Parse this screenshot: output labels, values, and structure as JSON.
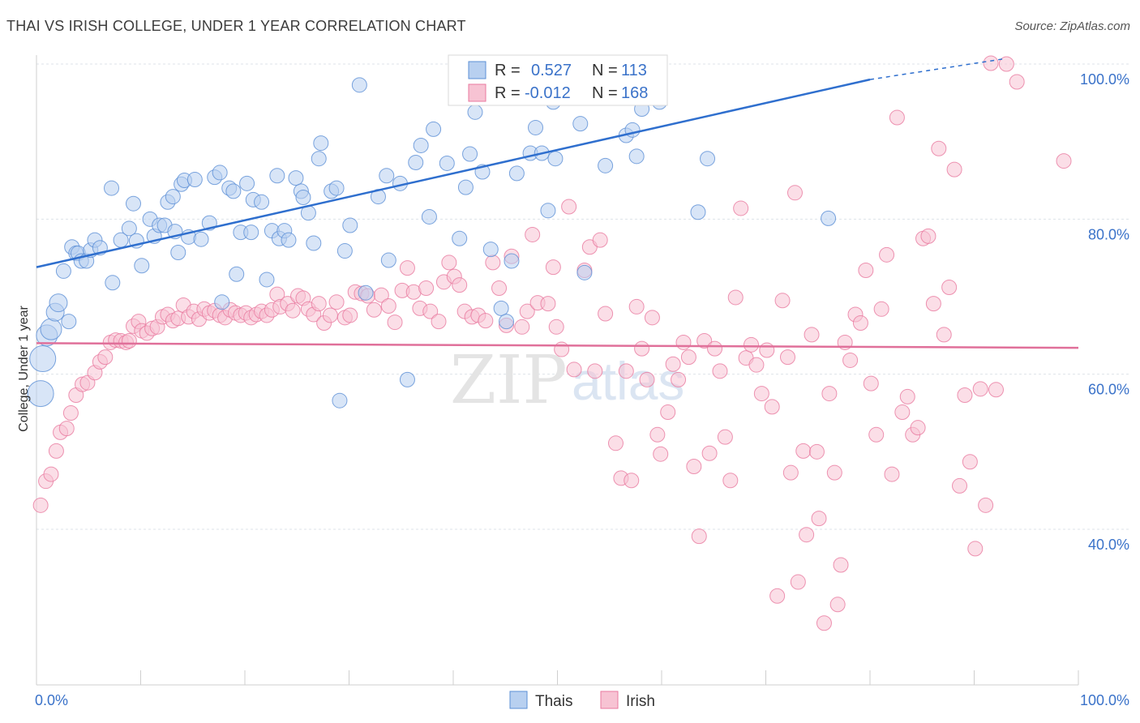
{
  "title": "THAI VS IRISH COLLEGE, UNDER 1 YEAR CORRELATION CHART",
  "source": "Source: ZipAtlas.com",
  "watermark": {
    "zip": "ZIP",
    "atlas": "atlas"
  },
  "colors": {
    "thais": "#5b8fd6",
    "thais_fill": "#b8d0f0",
    "irish": "#e8799f",
    "irish_fill": "#f7c3d3",
    "trend_thais": "#2f6fce",
    "trend_irish": "#e0709a",
    "grid": "#dde3ea",
    "tick_text": "#3a72c9"
  },
  "legend": {
    "rows": [
      {
        "r_label": "R =",
        "r_value": "0.527",
        "n_label": "N =",
        "n_value": "113"
      },
      {
        "r_label": "R =",
        "r_value": "-0.012",
        "n_label": "N =",
        "n_value": "168"
      }
    ]
  },
  "chart_data": {
    "type": "scatter",
    "title": "THAI VS IRISH COLLEGE, UNDER 1 YEAR CORRELATION CHART",
    "xlabel": "",
    "ylabel": "College, Under 1 year",
    "xlim": [
      0,
      100
    ],
    "ylim": [
      20,
      102
    ],
    "x_tick_labels": [
      "0.0%",
      "100.0%"
    ],
    "y_ticks": [
      40,
      60,
      80,
      100
    ],
    "y_tick_labels": [
      "40.0%",
      "60.0%",
      "80.0%",
      "100.0%"
    ],
    "legend_position": "top-center",
    "grid": true,
    "series": [
      {
        "name": "Thais",
        "trend": {
          "x0": 0,
          "y0": 73.8,
          "x1": 80,
          "y1": 98,
          "dashed_to_x": 93,
          "dashed_to_y": 100.7
        },
        "points": [
          [
            0.4,
            57.5
          ],
          [
            0.6,
            62
          ],
          [
            1,
            65
          ],
          [
            1.4,
            65.8
          ],
          [
            1.8,
            68
          ],
          [
            2.1,
            69.2
          ],
          [
            2.6,
            73.3
          ],
          [
            3.1,
            66.8
          ],
          [
            3.4,
            76.4
          ],
          [
            3.8,
            75.6
          ],
          [
            4,
            75.6
          ],
          [
            4.3,
            74.6
          ],
          [
            4.8,
            74.6
          ],
          [
            5.2,
            76
          ],
          [
            5.6,
            77.3
          ],
          [
            6.1,
            76.3
          ],
          [
            7.2,
            84
          ],
          [
            7.3,
            71.8
          ],
          [
            8.1,
            77.3
          ],
          [
            8.9,
            78.8
          ],
          [
            9.3,
            82
          ],
          [
            9.6,
            77.2
          ],
          [
            10.1,
            74
          ],
          [
            10.9,
            80
          ],
          [
            11.3,
            77.8
          ],
          [
            11.8,
            79.2
          ],
          [
            12.3,
            79.2
          ],
          [
            12.6,
            82.2
          ],
          [
            13.1,
            82.9
          ],
          [
            13.9,
            84.5
          ],
          [
            13.6,
            75.7
          ],
          [
            13.3,
            78.4
          ],
          [
            14.2,
            85
          ],
          [
            14.6,
            77.7
          ],
          [
            15.2,
            85.1
          ],
          [
            15.8,
            77.4
          ],
          [
            16.6,
            79.5
          ],
          [
            17.1,
            85.4
          ],
          [
            17.6,
            86
          ],
          [
            17.8,
            69.3
          ],
          [
            18.5,
            84
          ],
          [
            18.9,
            83.6
          ],
          [
            19.2,
            72.9
          ],
          [
            19.6,
            78.3
          ],
          [
            20.2,
            84.6
          ],
          [
            20.6,
            78.3
          ],
          [
            20.8,
            82.5
          ],
          [
            21.6,
            82.2
          ],
          [
            22.1,
            72.2
          ],
          [
            22.6,
            78.5
          ],
          [
            23.1,
            85.6
          ],
          [
            23.3,
            77.5
          ],
          [
            23.8,
            78.5
          ],
          [
            24.2,
            77.3
          ],
          [
            24.9,
            85.3
          ],
          [
            25.4,
            83.6
          ],
          [
            25.6,
            82.8
          ],
          [
            26.1,
            80.8
          ],
          [
            26.6,
            76.9
          ],
          [
            27.1,
            87.8
          ],
          [
            27.3,
            89.8
          ],
          [
            28.3,
            83.6
          ],
          [
            28.8,
            84
          ],
          [
            29.1,
            56.6
          ],
          [
            29.6,
            75.9
          ],
          [
            30.1,
            79.2
          ],
          [
            31,
            97.3
          ],
          [
            31.6,
            70.5
          ],
          [
            32.8,
            82.9
          ],
          [
            33.6,
            85.6
          ],
          [
            33.8,
            74.7
          ],
          [
            34.9,
            84.6
          ],
          [
            35.6,
            59.3
          ],
          [
            36.4,
            87.3
          ],
          [
            36.9,
            89.5
          ],
          [
            37.7,
            80.3
          ],
          [
            38.1,
            91.6
          ],
          [
            39.4,
            87.2
          ],
          [
            40.6,
            77.5
          ],
          [
            41.2,
            84.1
          ],
          [
            41.6,
            88.4
          ],
          [
            42.1,
            93.8
          ],
          [
            42.8,
            86.1
          ],
          [
            43.6,
            76.1
          ],
          [
            44.6,
            68.5
          ],
          [
            45.1,
            66.8
          ],
          [
            45.6,
            74.6
          ],
          [
            46.1,
            85.9
          ],
          [
            47.4,
            88.5
          ],
          [
            47.9,
            91.8
          ],
          [
            48.5,
            88.5
          ],
          [
            49.1,
            81.1
          ],
          [
            49.6,
            95.1
          ],
          [
            49.8,
            87.8
          ],
          [
            52.2,
            92.3
          ],
          [
            52.6,
            73.1
          ],
          [
            54.6,
            86.9
          ],
          [
            56.6,
            90.8
          ],
          [
            57.2,
            91.5
          ],
          [
            57.6,
            88.1
          ],
          [
            58.1,
            94.2
          ],
          [
            59.8,
            95.1
          ],
          [
            63.5,
            80.9
          ],
          [
            64.4,
            87.8
          ],
          [
            76,
            80.1
          ]
        ]
      },
      {
        "name": "Irish",
        "trend": {
          "x0": 0,
          "y0": 64,
          "x1": 100,
          "y1": 63.4
        },
        "points": [
          [
            0.4,
            43.1
          ],
          [
            0.9,
            46.2
          ],
          [
            1.4,
            47.1
          ],
          [
            1.9,
            50.1
          ],
          [
            2.3,
            52.5
          ],
          [
            2.9,
            53
          ],
          [
            3.3,
            55
          ],
          [
            3.8,
            57.3
          ],
          [
            4.4,
            58.7
          ],
          [
            4.9,
            58.9
          ],
          [
            5.6,
            60.2
          ],
          [
            6.1,
            61.6
          ],
          [
            6.6,
            62.2
          ],
          [
            7.1,
            64.1
          ],
          [
            7.6,
            64.4
          ],
          [
            8.1,
            64.3
          ],
          [
            8.6,
            64.1
          ],
          [
            8.9,
            64.3
          ],
          [
            9.3,
            66.2
          ],
          [
            9.8,
            66.8
          ],
          [
            10.1,
            65.6
          ],
          [
            10.6,
            65.3
          ],
          [
            11.1,
            65.9
          ],
          [
            11.6,
            66.1
          ],
          [
            12.1,
            67.4
          ],
          [
            12.6,
            67.7
          ],
          [
            13.1,
            66.9
          ],
          [
            13.6,
            67.2
          ],
          [
            14.1,
            68.9
          ],
          [
            14.6,
            67.4
          ],
          [
            15.1,
            68.1
          ],
          [
            15.6,
            67.1
          ],
          [
            16.1,
            68.4
          ],
          [
            16.6,
            67.9
          ],
          [
            17.1,
            68.2
          ],
          [
            17.6,
            67.6
          ],
          [
            18.1,
            67.3
          ],
          [
            18.6,
            68.3
          ],
          [
            19.1,
            67.9
          ],
          [
            19.6,
            67.6
          ],
          [
            20.1,
            67.9
          ],
          [
            20.6,
            67.3
          ],
          [
            21.1,
            67.7
          ],
          [
            21.6,
            68.1
          ],
          [
            22.1,
            67.6
          ],
          [
            22.6,
            68.3
          ],
          [
            23.1,
            70.3
          ],
          [
            23.4,
            68.7
          ],
          [
            24.1,
            69.1
          ],
          [
            24.6,
            68.2
          ],
          [
            25.1,
            70.1
          ],
          [
            25.6,
            69.8
          ],
          [
            26.1,
            68.4
          ],
          [
            26.6,
            67.7
          ],
          [
            27.1,
            69.1
          ],
          [
            27.6,
            66.6
          ],
          [
            28.2,
            67.6
          ],
          [
            28.8,
            69.3
          ],
          [
            29.6,
            67.3
          ],
          [
            30.1,
            67.6
          ],
          [
            30.6,
            70.6
          ],
          [
            31.2,
            70.4
          ],
          [
            31.8,
            70.1
          ],
          [
            32.4,
            68.3
          ],
          [
            33.1,
            70.2
          ],
          [
            33.8,
            68.8
          ],
          [
            34.4,
            66.7
          ],
          [
            35.1,
            70.8
          ],
          [
            35.6,
            73.7
          ],
          [
            36.2,
            70.6
          ],
          [
            36.8,
            68.5
          ],
          [
            37.4,
            71.1
          ],
          [
            37.8,
            68.1
          ],
          [
            38.6,
            66.8
          ],
          [
            39.1,
            71.9
          ],
          [
            39.6,
            74.4
          ],
          [
            40.1,
            72.6
          ],
          [
            40.6,
            71.5
          ],
          [
            41.1,
            68.1
          ],
          [
            41.8,
            67.4
          ],
          [
            42.4,
            67.6
          ],
          [
            43.1,
            66.9
          ],
          [
            43.8,
            74.4
          ],
          [
            44.4,
            71.1
          ],
          [
            45.1,
            66.3
          ],
          [
            45.6,
            75.2
          ],
          [
            46.6,
            66.1
          ],
          [
            47.1,
            68.1
          ],
          [
            47.6,
            78
          ],
          [
            48.1,
            69.2
          ],
          [
            49.1,
            69.1
          ],
          [
            49.6,
            73.8
          ],
          [
            49.9,
            66.1
          ],
          [
            50.4,
            63.2
          ],
          [
            51.1,
            81.6
          ],
          [
            51.6,
            60.6
          ],
          [
            52.6,
            73.4
          ],
          [
            53.1,
            76.4
          ],
          [
            53.6,
            60.4
          ],
          [
            54.1,
            77.3
          ],
          [
            54.6,
            67.8
          ],
          [
            55.6,
            51.1
          ],
          [
            56.1,
            46.6
          ],
          [
            56.6,
            60.4
          ],
          [
            57.1,
            46.3
          ],
          [
            57.6,
            68.7
          ],
          [
            58.1,
            63.3
          ],
          [
            58.6,
            59.3
          ],
          [
            59.1,
            67.3
          ],
          [
            59.6,
            52.2
          ],
          [
            59.9,
            49.7
          ],
          [
            60.6,
            55.1
          ],
          [
            61.1,
            61.3
          ],
          [
            61.6,
            59.3
          ],
          [
            62.1,
            64.1
          ],
          [
            62.6,
            62.2
          ],
          [
            63.1,
            48.1
          ],
          [
            63.6,
            39.1
          ],
          [
            64.1,
            64.3
          ],
          [
            64.6,
            49.8
          ],
          [
            65.1,
            63.3
          ],
          [
            65.6,
            60.4
          ],
          [
            66.1,
            51.9
          ],
          [
            66.6,
            46.3
          ],
          [
            67.1,
            69.9
          ],
          [
            67.6,
            81.4
          ],
          [
            68.1,
            62.1
          ],
          [
            68.6,
            63.8
          ],
          [
            69.1,
            61.2
          ],
          [
            69.6,
            57.5
          ],
          [
            70.1,
            63.1
          ],
          [
            70.6,
            55.8
          ],
          [
            71.1,
            31.4
          ],
          [
            71.6,
            69.5
          ],
          [
            72.1,
            62.2
          ],
          [
            72.4,
            47.3
          ],
          [
            72.8,
            83.4
          ],
          [
            73.1,
            33.2
          ],
          [
            73.6,
            50.1
          ],
          [
            73.9,
            39.3
          ],
          [
            74.4,
            65.1
          ],
          [
            74.9,
            50
          ],
          [
            75.1,
            41.4
          ],
          [
            75.6,
            27.9
          ],
          [
            76.1,
            57.5
          ],
          [
            76.6,
            47.3
          ],
          [
            76.9,
            30.3
          ],
          [
            77.2,
            35.4
          ],
          [
            77.6,
            64.1
          ],
          [
            78.1,
            61.8
          ],
          [
            78.6,
            67.7
          ],
          [
            79.1,
            66.6
          ],
          [
            79.6,
            73.4
          ],
          [
            80.1,
            58.8
          ],
          [
            80.6,
            52.2
          ],
          [
            81.1,
            68.4
          ],
          [
            81.6,
            75.4
          ],
          [
            82.1,
            47.1
          ],
          [
            82.6,
            93.1
          ],
          [
            83.1,
            55.1
          ],
          [
            83.6,
            57.1
          ],
          [
            84.1,
            52.2
          ],
          [
            84.6,
            53.1
          ],
          [
            85.1,
            77.5
          ],
          [
            85.6,
            77.8
          ],
          [
            86.1,
            69.1
          ],
          [
            86.6,
            89.1
          ],
          [
            87.1,
            65.1
          ],
          [
            87.6,
            71.2
          ],
          [
            88.1,
            86.4
          ],
          [
            88.6,
            45.6
          ],
          [
            89.1,
            57.3
          ],
          [
            89.6,
            48.7
          ],
          [
            90.1,
            37.5
          ],
          [
            90.6,
            58.1
          ],
          [
            91.1,
            43.1
          ],
          [
            91.6,
            100.1
          ],
          [
            92.1,
            58
          ],
          [
            93.1,
            100
          ],
          [
            94.1,
            97.7
          ],
          [
            98.6,
            87.5
          ],
          [
            56.9,
            100
          ]
        ]
      }
    ]
  },
  "bottom_legend": [
    {
      "label": "Thais"
    },
    {
      "label": "Irish"
    }
  ]
}
